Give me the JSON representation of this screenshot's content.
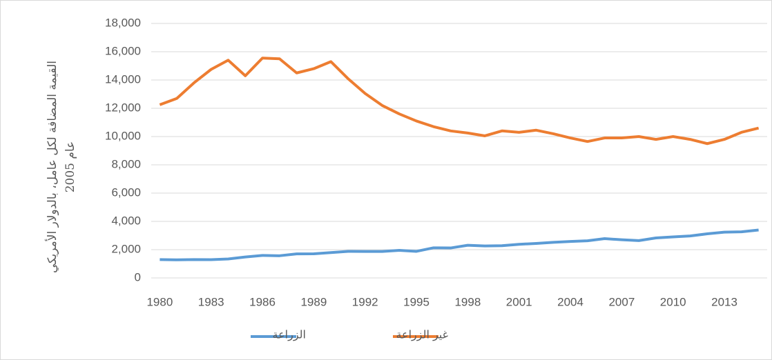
{
  "chart_data": {
    "type": "line",
    "y_label": "القيمة المضافة لكل عامل، بالدولار الأمريكي عام 2005",
    "x": [
      1980,
      1981,
      1982,
      1983,
      1984,
      1985,
      1986,
      1987,
      1988,
      1989,
      1990,
      1991,
      1992,
      1993,
      1994,
      1995,
      1996,
      1997,
      1998,
      1999,
      2000,
      2001,
      2002,
      2003,
      2004,
      2005,
      2006,
      2007,
      2008,
      2009,
      2010,
      2011,
      2012,
      2013,
      2014,
      2015
    ],
    "series": [
      {
        "name": "الزراعة",
        "color": "#5b9bd5",
        "values": [
          1300,
          1280,
          1300,
          1290,
          1340,
          1480,
          1590,
          1570,
          1700,
          1710,
          1790,
          1880,
          1870,
          1870,
          1950,
          1880,
          2130,
          2120,
          2310,
          2260,
          2280,
          2380,
          2440,
          2520,
          2580,
          2630,
          2780,
          2700,
          2640,
          2830,
          2900,
          2970,
          3120,
          3240,
          3260,
          3390
        ]
      },
      {
        "name": "غير الزراعة",
        "color": "#ed7d31",
        "values": [
          12250,
          12700,
          13800,
          14750,
          15400,
          14300,
          15550,
          15500,
          14500,
          14800,
          15300,
          14100,
          13050,
          12200,
          11600,
          11100,
          10700,
          10400,
          10250,
          10050,
          10400,
          10300,
          10450,
          10200,
          9900,
          9650,
          9900,
          9900,
          10000,
          9800,
          10000,
          9800,
          9500,
          9800,
          10300,
          10600
        ]
      }
    ],
    "xlim": [
      1979.5,
      2015.5
    ],
    "xticks": [
      1980,
      1983,
      1986,
      1989,
      1992,
      1995,
      1998,
      2001,
      2004,
      2007,
      2010,
      2013
    ],
    "ylim": [
      0,
      18000
    ],
    "yticks": [
      0,
      {
        "value": 2000,
        "label": "2,000"
      },
      {
        "value": 4000,
        "label": "4,000"
      },
      {
        "value": 6000,
        "label": "6,000"
      },
      {
        "value": 8000,
        "label": "8,000"
      },
      {
        "value": 10000,
        "label": "10,000"
      },
      {
        "value": 12000,
        "label": "12,000"
      },
      {
        "value": 14000,
        "label": "14,000"
      },
      {
        "value": 16000,
        "label": "16,000"
      },
      {
        "value": 18000,
        "label": "18,000"
      }
    ],
    "grid": true,
    "legend": "bottom"
  }
}
